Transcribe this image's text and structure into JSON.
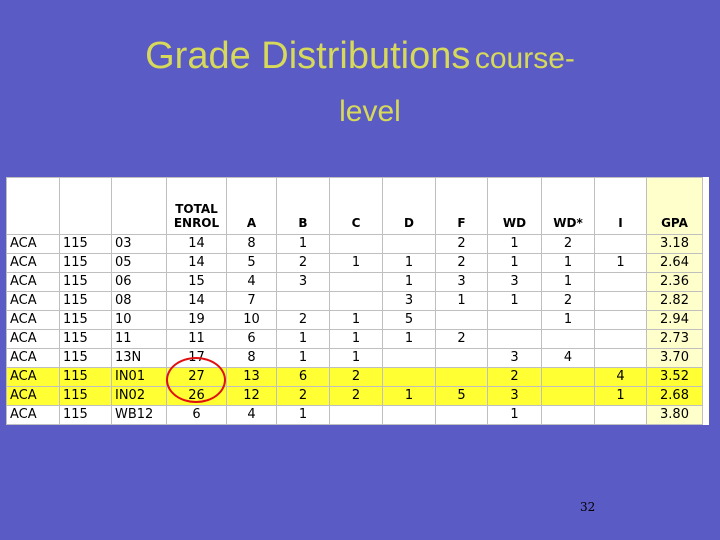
{
  "slide": {
    "title_main": "Grade Distributions",
    "title_tail": "course-",
    "title_line2": "level",
    "page_number": "32"
  },
  "table": {
    "headers": [
      "",
      "",
      "",
      "TOTAL ENROL",
      "A",
      "B",
      "C",
      "D",
      "F",
      "WD",
      "WD*",
      "I",
      "GPA"
    ],
    "rows": [
      [
        "ACA",
        "115",
        "03",
        "14",
        "8",
        "1",
        "",
        "",
        "2",
        "1",
        "2",
        "",
        "3.18"
      ],
      [
        "ACA",
        "115",
        "05",
        "14",
        "5",
        "2",
        "1",
        "1",
        "2",
        "1",
        "1",
        "1",
        "2.64"
      ],
      [
        "ACA",
        "115",
        "06",
        "15",
        "4",
        "3",
        "",
        "1",
        "3",
        "3",
        "1",
        "",
        "2.36"
      ],
      [
        "ACA",
        "115",
        "08",
        "14",
        "7",
        "",
        "",
        "3",
        "1",
        "1",
        "2",
        "",
        "2.82"
      ],
      [
        "ACA",
        "115",
        "10",
        "19",
        "10",
        "2",
        "1",
        "5",
        "",
        "",
        "1",
        "",
        "2.94"
      ],
      [
        "ACA",
        "115",
        "11",
        "11",
        "6",
        "1",
        "1",
        "1",
        "2",
        "",
        "",
        "",
        "2.73"
      ],
      [
        "ACA",
        "115",
        "13N",
        "17",
        "8",
        "1",
        "1",
        "",
        "",
        "3",
        "4",
        "",
        "3.70"
      ],
      [
        "ACA",
        "115",
        "IN01",
        "27",
        "13",
        "6",
        "2",
        "",
        "",
        "2",
        "",
        "4",
        "3.52"
      ],
      [
        "ACA",
        "115",
        "IN02",
        "26",
        "12",
        "2",
        "2",
        "1",
        "5",
        "3",
        "",
        "1",
        "2.68"
      ],
      [
        "ACA",
        "115",
        "WB12",
        "6",
        "4",
        "1",
        "",
        "",
        "",
        "1",
        "",
        "",
        "3.80"
      ]
    ],
    "highlighted_rows": [
      7,
      8
    ],
    "highlight_color": "#ffff33",
    "circle_color": "#e01010"
  },
  "colors": {
    "background": "#5b5bc6",
    "title": "#d6d95a"
  }
}
